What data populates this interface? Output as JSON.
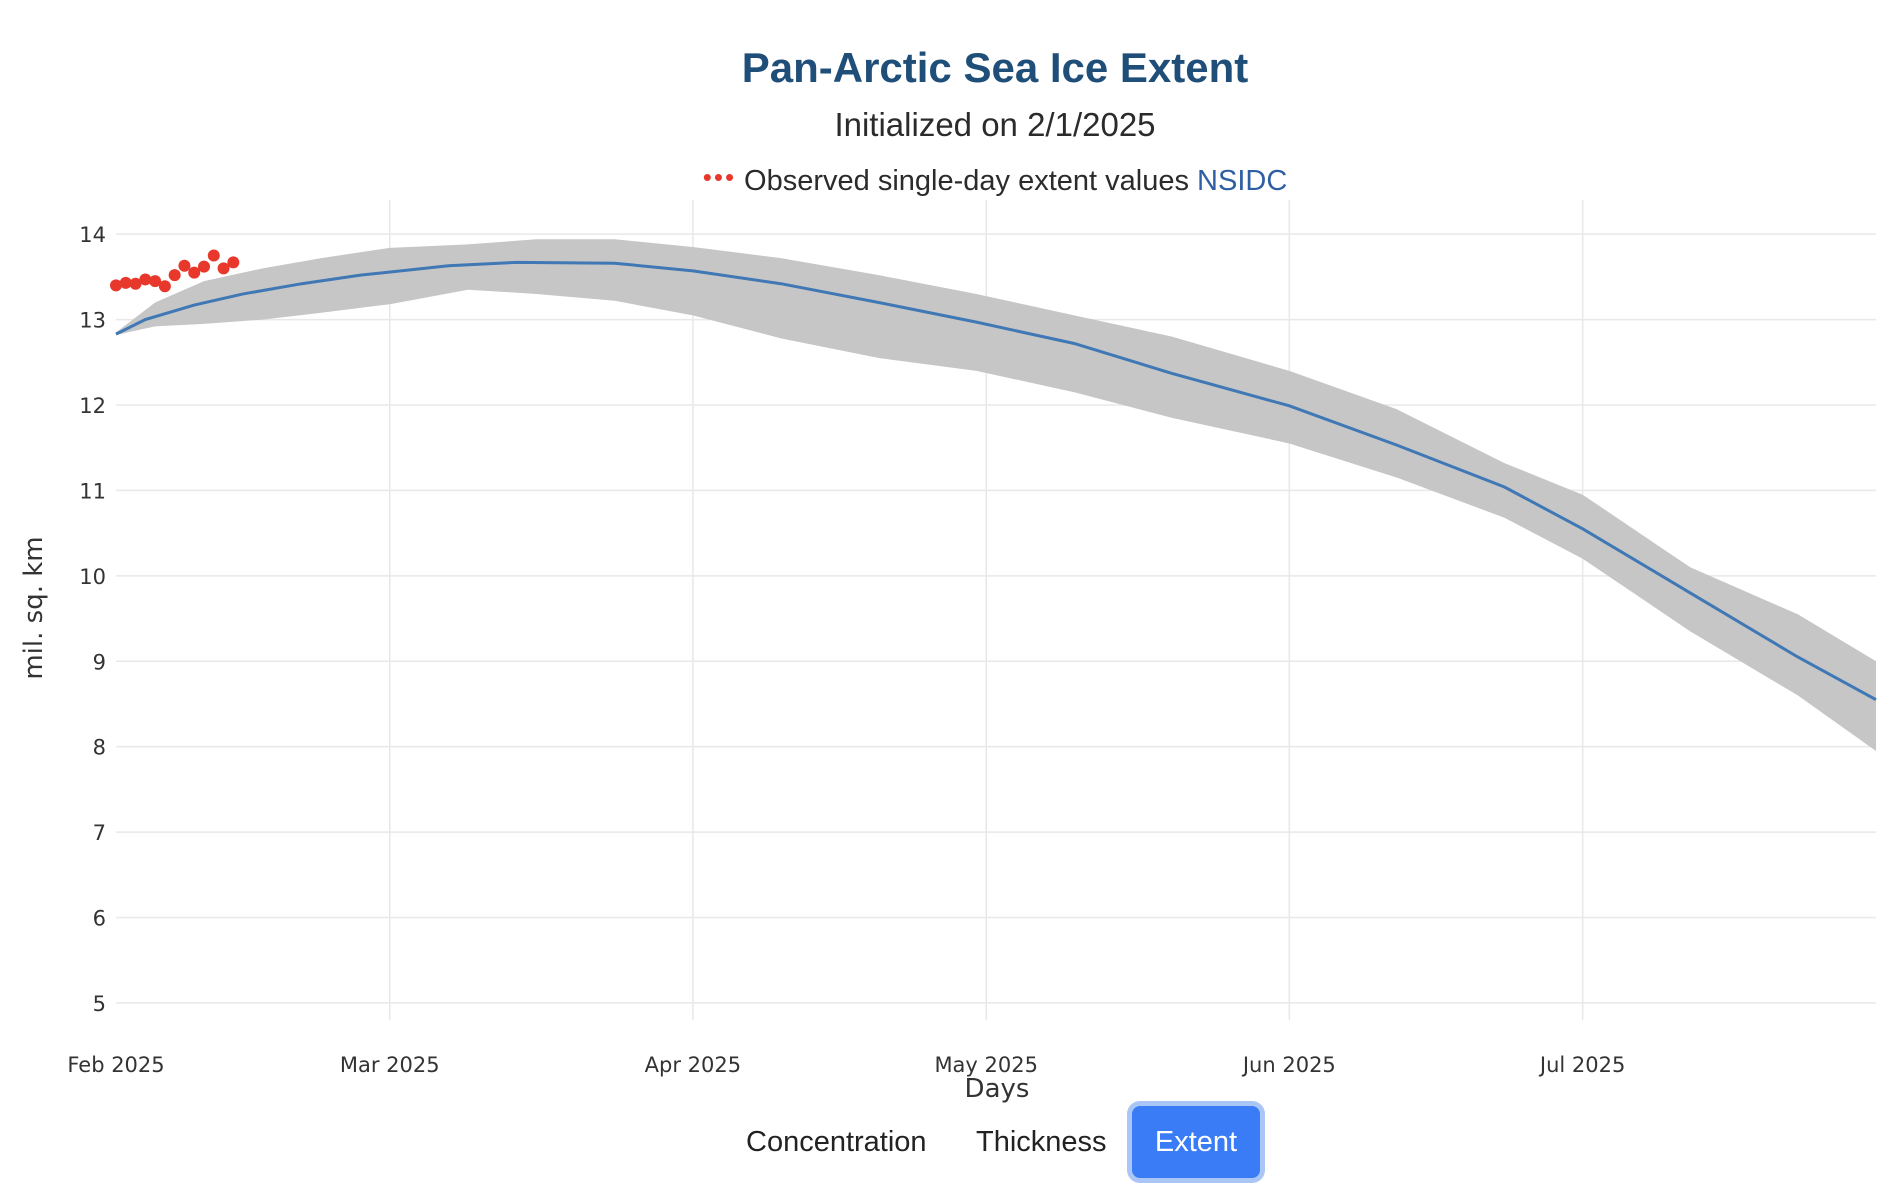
{
  "chart_data": {
    "type": "line",
    "title": "Pan-Arctic Sea Ice Extent",
    "subtitle": "Initialized on 2/1/2025",
    "legend": {
      "marker": "•••",
      "label": "Observed single-day extent values",
      "source": "NSIDC",
      "placement": "top-center"
    },
    "xlabel": "Days",
    "ylabel": "mil. sq. km",
    "x_ticks": [
      "Feb 2025",
      "Mar 2025",
      "Apr 2025",
      "May 2025",
      "Jun 2025",
      "Jul 2025"
    ],
    "x_range": [
      "2025-02-01",
      "2025-07-31"
    ],
    "y_ticks": [
      5,
      6,
      7,
      8,
      9,
      10,
      11,
      12,
      13,
      14
    ],
    "ylim": [
      4.8,
      14.4
    ],
    "grid": true,
    "colors": {
      "forecast_line": "#3f78b5",
      "range_band": "#c6c6c6",
      "observed": "#e8382c",
      "title": "#1f4e79"
    },
    "series": [
      {
        "kind": "mean-line",
        "points": [
          [
            "2025-02-01",
            12.83
          ],
          [
            "2025-02-04",
            13.0
          ],
          [
            "2025-02-09",
            13.17
          ],
          [
            "2025-02-14",
            13.3
          ],
          [
            "2025-02-20",
            13.42
          ],
          [
            "2025-02-26",
            13.52
          ],
          [
            "2025-03-07",
            13.63
          ],
          [
            "2025-03-14",
            13.67
          ],
          [
            "2025-03-24",
            13.66
          ],
          [
            "2025-04-01",
            13.57
          ],
          [
            "2025-04-10",
            13.42
          ],
          [
            "2025-04-20",
            13.2
          ],
          [
            "2025-04-30",
            12.97
          ],
          [
            "2025-05-10",
            12.72
          ],
          [
            "2025-05-20",
            12.37
          ],
          [
            "2025-06-01",
            11.99
          ],
          [
            "2025-06-12",
            11.53
          ],
          [
            "2025-06-23",
            11.04
          ],
          [
            "2025-07-01",
            10.55
          ],
          [
            "2025-07-12",
            9.8
          ],
          [
            "2025-07-23",
            9.05
          ],
          [
            "2025-07-31",
            8.55
          ]
        ]
      },
      {
        "kind": "range-band",
        "upper": [
          [
            "2025-02-01",
            12.85
          ],
          [
            "2025-02-05",
            13.2
          ],
          [
            "2025-02-10",
            13.45
          ],
          [
            "2025-02-16",
            13.6
          ],
          [
            "2025-02-22",
            13.72
          ],
          [
            "2025-03-01",
            13.84
          ],
          [
            "2025-03-09",
            13.88
          ],
          [
            "2025-03-16",
            13.94
          ],
          [
            "2025-03-24",
            13.94
          ],
          [
            "2025-04-01",
            13.85
          ],
          [
            "2025-04-10",
            13.72
          ],
          [
            "2025-04-20",
            13.52
          ],
          [
            "2025-04-30",
            13.3
          ],
          [
            "2025-05-10",
            13.05
          ],
          [
            "2025-05-20",
            12.8
          ],
          [
            "2025-06-01",
            12.4
          ],
          [
            "2025-06-12",
            11.95
          ],
          [
            "2025-06-23",
            11.32
          ],
          [
            "2025-07-01",
            10.95
          ],
          [
            "2025-07-12",
            10.1
          ],
          [
            "2025-07-23",
            9.55
          ],
          [
            "2025-07-31",
            9.0
          ]
        ],
        "lower": [
          [
            "2025-02-01",
            12.82
          ],
          [
            "2025-02-05",
            12.92
          ],
          [
            "2025-02-10",
            12.95
          ],
          [
            "2025-02-16",
            13.0
          ],
          [
            "2025-02-22",
            13.08
          ],
          [
            "2025-03-01",
            13.18
          ],
          [
            "2025-03-09",
            13.35
          ],
          [
            "2025-03-16",
            13.3
          ],
          [
            "2025-03-24",
            13.22
          ],
          [
            "2025-04-01",
            13.05
          ],
          [
            "2025-04-10",
            12.78
          ],
          [
            "2025-04-20",
            12.55
          ],
          [
            "2025-04-30",
            12.4
          ],
          [
            "2025-05-10",
            12.15
          ],
          [
            "2025-05-20",
            11.85
          ],
          [
            "2025-06-01",
            11.55
          ],
          [
            "2025-06-12",
            11.15
          ],
          [
            "2025-06-23",
            10.68
          ],
          [
            "2025-07-01",
            10.2
          ],
          [
            "2025-07-12",
            9.35
          ],
          [
            "2025-07-23",
            8.6
          ],
          [
            "2025-07-31",
            7.95
          ]
        ]
      },
      {
        "kind": "observed",
        "name": "Observed single-day extent values",
        "points": [
          [
            "2025-02-01",
            13.4
          ],
          [
            "2025-02-02",
            13.43
          ],
          [
            "2025-02-03",
            13.42
          ],
          [
            "2025-02-04",
            13.47
          ],
          [
            "2025-02-05",
            13.45
          ],
          [
            "2025-02-06",
            13.39
          ],
          [
            "2025-02-07",
            13.52
          ],
          [
            "2025-02-08",
            13.63
          ],
          [
            "2025-02-09",
            13.55
          ],
          [
            "2025-02-10",
            13.62
          ],
          [
            "2025-02-11",
            13.75
          ],
          [
            "2025-02-12",
            13.6
          ],
          [
            "2025-02-13",
            13.67
          ]
        ]
      }
    ]
  },
  "tabs": [
    {
      "label": "Concentration",
      "active": false
    },
    {
      "label": "Thickness",
      "active": false
    },
    {
      "label": "Extent",
      "active": true
    }
  ]
}
